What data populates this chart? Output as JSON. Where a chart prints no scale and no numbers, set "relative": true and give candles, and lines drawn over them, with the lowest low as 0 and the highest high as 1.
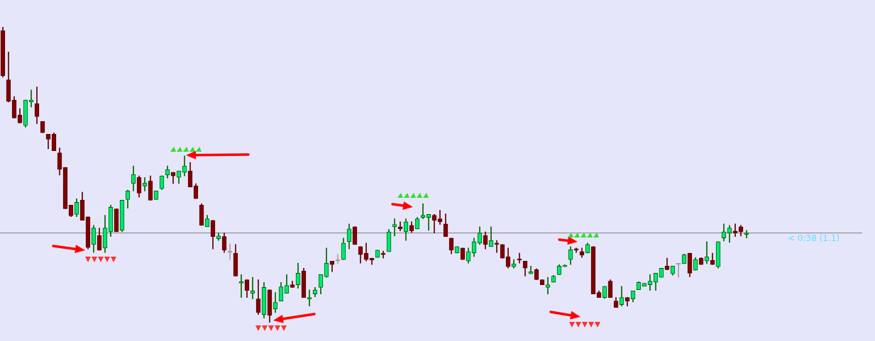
{
  "chart_data": {
    "type": "candlestick",
    "relative": true,
    "legend": false,
    "categories": [
      null,
      null,
      null,
      null,
      null,
      null,
      null,
      null,
      null,
      null,
      null,
      null,
      null,
      null,
      null,
      null,
      null,
      null,
      null,
      null,
      null,
      null,
      null,
      null,
      null,
      null,
      null,
      null,
      null,
      null,
      null,
      null,
      null,
      null,
      null,
      null,
      null,
      null,
      null,
      null,
      null,
      null,
      null,
      null,
      null,
      null,
      null,
      null,
      null,
      null,
      null,
      null,
      null,
      null,
      null,
      null,
      null,
      null,
      null,
      null,
      null,
      null,
      null,
      null,
      null,
      null,
      null,
      null,
      null,
      null,
      null,
      null,
      null,
      null,
      null,
      null,
      null,
      null,
      null,
      null,
      null,
      null,
      null,
      null,
      null,
      null,
      null,
      null,
      null,
      null,
      null,
      null,
      null,
      null,
      null,
      null,
      null,
      null,
      null,
      null,
      null,
      null,
      null,
      null,
      null,
      null,
      null,
      null,
      null,
      null,
      null,
      null,
      null,
      null,
      null,
      null,
      null,
      null,
      null,
      null,
      null,
      null,
      null,
      null,
      null,
      null,
      null,
      null,
      null,
      null,
      null,
      null
    ],
    "ohlc": [
      [
        0.988,
        1,
        0.83,
        0.835
      ],
      [
        0.821,
        0.915,
        0.746,
        0.748
      ],
      [
        0.753,
        0.765,
        0.692,
        0.692
      ],
      [
        0.702,
        0.724,
        0.675,
        0.675
      ],
      [
        0.666,
        0.753,
        0.661,
        0.753
      ],
      [
        0.746,
        0.787,
        0.729,
        0.753
      ],
      [
        0.741,
        0.797,
        0.673,
        0.697
      ],
      [
        0.68,
        0.68,
        0.642,
        0.642
      ],
      [
        0.637,
        0.637,
        0.588,
        0.62
      ],
      [
        0.637,
        0.642,
        0.581,
        0.581
      ],
      [
        0.574,
        0.591,
        0.499,
        0.518
      ],
      [
        0.525,
        0.525,
        0.385,
        0.385
      ],
      [
        0.397,
        0.397,
        0.358,
        0.361
      ],
      [
        0.366,
        0.419,
        0.358,
        0.407
      ],
      [
        0.414,
        0.441,
        0.346,
        0.346
      ],
      [
        0.358,
        0.358,
        0.249,
        0.254
      ],
      [
        0.264,
        0.329,
        0.237,
        0.32
      ],
      [
        0.295,
        0.32,
        0.245,
        0.245
      ],
      [
        0.252,
        0.363,
        0.237,
        0.32
      ],
      [
        0.307,
        0.397,
        0.291,
        0.39
      ],
      [
        0.385,
        0.385,
        0.307,
        0.307
      ],
      [
        0.312,
        0.414,
        0.307,
        0.414
      ],
      [
        0.416,
        0.448,
        0.387,
        0.445
      ],
      [
        0.47,
        0.53,
        0.445,
        0.501
      ],
      [
        0.491,
        0.496,
        0.424,
        0.438
      ],
      [
        0.462,
        0.491,
        0.445,
        0.472
      ],
      [
        0.479,
        0.496,
        0.414,
        0.414
      ],
      [
        0.416,
        0.445,
        0.416,
        0.445
      ],
      [
        0.453,
        0.496,
        0.45,
        0.496
      ],
      [
        0.499,
        0.53,
        0.489,
        0.518
      ],
      [
        0.508,
        0.508,
        0.47,
        0.496
      ],
      [
        0.491,
        0.513,
        0.47,
        0.513
      ],
      [
        0.508,
        0.564,
        0.496,
        0.53
      ],
      [
        0.513,
        0.542,
        0.458,
        0.458
      ],
      [
        0.462,
        0.47,
        0.419,
        0.419
      ],
      [
        0.397,
        0.402,
        0.329,
        0.329
      ],
      [
        0.324,
        0.363,
        0.324,
        0.351
      ],
      [
        0.346,
        0.346,
        0.249,
        0.291
      ],
      [
        0.283,
        0.303,
        0.278,
        0.293
      ],
      [
        0.291,
        0.303,
        0.237,
        0.245
      ],
      [
        0.237,
        0.266,
        0.213,
        0.237
      ],
      [
        0.235,
        0.264,
        0.157,
        0.157
      ],
      [
        0.133,
        0.162,
        0.085,
        0.138
      ],
      [
        0.145,
        0.145,
        0.085,
        0.109
      ],
      [
        0.099,
        0.153,
        0.08,
        0.107
      ],
      [
        0.08,
        0.145,
        0.027,
        0.034
      ],
      [
        0.027,
        0.136,
        0.015,
        0.119
      ],
      [
        0.111,
        0.111,
        0,
        0.024
      ],
      [
        0.046,
        0.102,
        0.034,
        0.068
      ],
      [
        0.073,
        0.136,
        0.073,
        0.121
      ],
      [
        0.099,
        0.162,
        0.099,
        0.126
      ],
      [
        0.128,
        0.14,
        0.119,
        0.119
      ],
      [
        0.128,
        0.201,
        0.116,
        0.167
      ],
      [
        0.174,
        0.184,
        0.085,
        0.085
      ],
      [
        0.08,
        0.111,
        0.056,
        0.085
      ],
      [
        0.097,
        0.119,
        0.087,
        0.111
      ],
      [
        0.119,
        0.162,
        0.097,
        0.162
      ],
      [
        0.155,
        0.252,
        0.153,
        0.201
      ],
      [
        0.208,
        0.208,
        0.172,
        0.196
      ],
      [
        0.208,
        0.23,
        0.199,
        0.208
      ],
      [
        0.213,
        0.286,
        0.213,
        0.269
      ],
      [
        0.274,
        0.334,
        0.249,
        0.317
      ],
      [
        0.324,
        0.324,
        0.264,
        0.264
      ],
      [
        0.257,
        0.257,
        0.201,
        0.23
      ],
      [
        0.235,
        0.269,
        0.208,
        0.213
      ],
      [
        0.218,
        0.218,
        0.196,
        0.211
      ],
      [
        0.22,
        0.245,
        0.22,
        0.245
      ],
      [
        0.235,
        0.242,
        0.218,
        0.23
      ],
      [
        0.24,
        0.315,
        0.24,
        0.307
      ],
      [
        0.324,
        0.351,
        0.293,
        0.332
      ],
      [
        0.324,
        0.341,
        0.31,
        0.317
      ],
      [
        0.307,
        0.351,
        0.278,
        0.341
      ],
      [
        0.329,
        0.341,
        0.305,
        0.31
      ],
      [
        0.317,
        0.356,
        0.317,
        0.351
      ],
      [
        0.356,
        0.402,
        0.351,
        0.363
      ],
      [
        0.356,
        0.366,
        0.312,
        0.366
      ],
      [
        0.363,
        0.366,
        0.303,
        0.346
      ],
      [
        0.351,
        0.38,
        0.332,
        0.341
      ],
      [
        0.334,
        0.368,
        0.291,
        0.291
      ],
      [
        0.286,
        0.286,
        0.232,
        0.245
      ],
      [
        0.235,
        0.257,
        0.235,
        0.257
      ],
      [
        0.252,
        0.252,
        0.213,
        0.213
      ],
      [
        0.208,
        0.252,
        0.201,
        0.24
      ],
      [
        0.235,
        0.286,
        0.223,
        0.274
      ],
      [
        0.269,
        0.324,
        0.264,
        0.303
      ],
      [
        0.295,
        0.307,
        0.249,
        0.264
      ],
      [
        0.257,
        0.324,
        0.257,
        0.278
      ],
      [
        0.269,
        0.278,
        0.237,
        0.264
      ],
      [
        0.264,
        0.264,
        0.218,
        0.218
      ],
      [
        0.223,
        0.252,
        0.184,
        0.189
      ],
      [
        0.189,
        0.213,
        0.184,
        0.199
      ],
      [
        0.215,
        0.235,
        0.201,
        0.211
      ],
      [
        0.208,
        0.208,
        0.157,
        0.184
      ],
      [
        0.165,
        0.191,
        0.165,
        0.172
      ],
      [
        0.179,
        0.182,
        0.145,
        0.145
      ],
      [
        0.145,
        0.145,
        0.128,
        0.128
      ],
      [
        0.119,
        0.153,
        0.097,
        0.128
      ],
      [
        0.136,
        0.16,
        0.136,
        0.157
      ],
      [
        0.162,
        0.196,
        0.162,
        0.191
      ],
      [
        0.189,
        0.196,
        0.189,
        0.194
      ],
      [
        0.213,
        0.257,
        0.196,
        0.247
      ],
      [
        0.249,
        0.252,
        0.237,
        0.245
      ],
      [
        0.24,
        0.252,
        0.22,
        0.228
      ],
      [
        0.235,
        0.269,
        0.235,
        0.264
      ],
      [
        0.257,
        0.257,
        0.097,
        0.097
      ],
      [
        0.102,
        0.107,
        0.085,
        0.085
      ],
      [
        0.085,
        0.123,
        0.082,
        0.123
      ],
      [
        0.14,
        0.145,
        0.085,
        0.085
      ],
      [
        0.073,
        0.085,
        0.051,
        0.051
      ],
      [
        0.061,
        0.123,
        0.056,
        0.085
      ],
      [
        0.085,
        0.085,
        0.056,
        0.073
      ],
      [
        0.08,
        0.107,
        0.07,
        0.107
      ],
      [
        0.111,
        0.138,
        0.111,
        0.136
      ],
      [
        0.123,
        0.133,
        0.123,
        0.133
      ],
      [
        0.128,
        0.162,
        0.109,
        0.14
      ],
      [
        0.136,
        0.167,
        0.109,
        0.167
      ],
      [
        0.153,
        0.184,
        0.153,
        0.184
      ],
      [
        0.191,
        0.218,
        0.179,
        0.179
      ],
      [
        0.165,
        0.191,
        0.16,
        0.191
      ],
      [
        0.196,
        0.196,
        0.153,
        0.196
      ],
      [
        0.199,
        0.232,
        0.199,
        0.23
      ],
      [
        0.235,
        0.235,
        0.155,
        0.167
      ],
      [
        0.177,
        0.22,
        0.177,
        0.213
      ],
      [
        0.218,
        0.22,
        0.196,
        0.196
      ],
      [
        0.208,
        0.274,
        0.199,
        0.223
      ],
      [
        0.211,
        0.235,
        0.196,
        0.196
      ],
      [
        0.189,
        0.274,
        0.184,
        0.274
      ],
      [
        0.286,
        0.334,
        0.276,
        0.307
      ],
      [
        0.303,
        0.329,
        0.271,
        0.32
      ],
      [
        0.31,
        0.334,
        0.291,
        0.303
      ],
      [
        0.324,
        0.329,
        0.293,
        0.307
      ],
      [
        0.298,
        0.312,
        0.286,
        0.303
      ]
    ],
    "ref_lines": [
      {
        "axis": "y",
        "value": 0.303,
        "color": "#808080"
      }
    ],
    "annotations": [
      "< 0:38 (1.1)"
    ]
  }
}
